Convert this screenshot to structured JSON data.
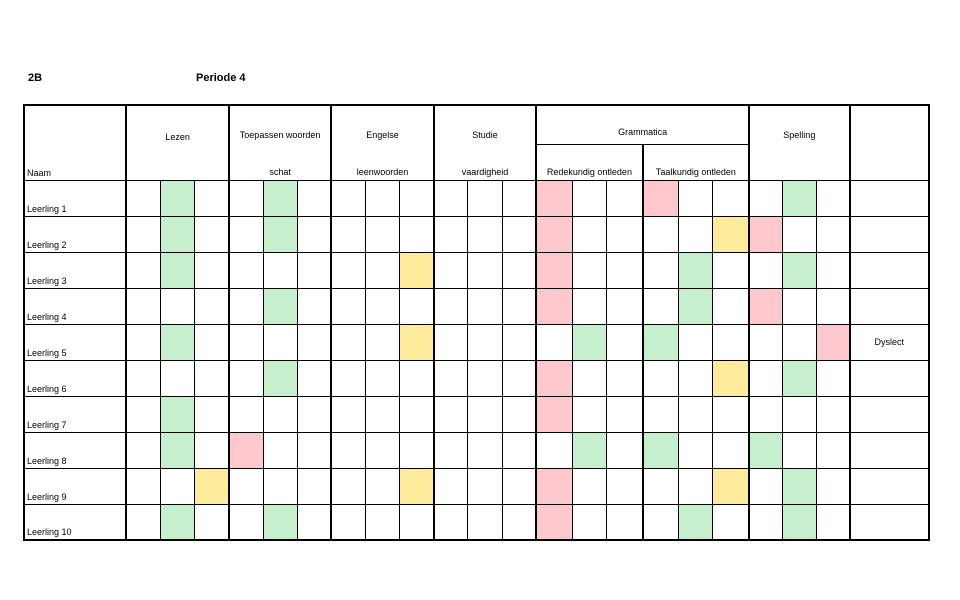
{
  "class_label": "2B",
  "period_label": "Periode 4",
  "headers": {
    "name": "Naam",
    "lezen": "Lezen",
    "toepassen_top": "Toepassen woorden",
    "toepassen_bottom": "schat",
    "engelse_top": "Engelse",
    "engelse_bottom": "leenwoorden",
    "studie_top": "Studie",
    "studie_bottom": "vaardigheid",
    "grammatica": "Grammatica",
    "redekundig": "Redekundig ontleden",
    "taalkundig": "Taalkundig ontleden",
    "spelling": "Spelling"
  },
  "colors": {
    "green": "#c6efce",
    "red": "#ffc7ce",
    "yellow": "#ffeb9c"
  },
  "rows": [
    {
      "name": "Leerling 1",
      "note": "",
      "cells": [
        "",
        "g",
        "",
        "",
        "g",
        "",
        "",
        "",
        "",
        "",
        "",
        "",
        "r",
        "",
        "",
        "r",
        "",
        "",
        "",
        "g",
        ""
      ]
    },
    {
      "name": "Leerling 2",
      "note": "",
      "cells": [
        "",
        "g",
        "",
        "",
        "g",
        "",
        "",
        "",
        "",
        "",
        "",
        "",
        "r",
        "",
        "",
        "",
        "",
        "y",
        "r",
        "",
        ""
      ]
    },
    {
      "name": "Leerling 3",
      "note": "",
      "cells": [
        "",
        "g",
        "",
        "",
        "",
        "",
        "",
        "",
        "y",
        "",
        "",
        "",
        "r",
        "",
        "",
        "",
        "g",
        "",
        "",
        "g",
        ""
      ]
    },
    {
      "name": "Leerling 4",
      "note": "",
      "cells": [
        "",
        "",
        "",
        "",
        "g",
        "",
        "",
        "",
        "",
        "",
        "",
        "",
        "r",
        "",
        "",
        "",
        "g",
        "",
        "r",
        "",
        ""
      ]
    },
    {
      "name": "Leerling 5",
      "note": "Dyslect",
      "cells": [
        "",
        "g",
        "",
        "",
        "",
        "",
        "",
        "",
        "y",
        "",
        "",
        "",
        "",
        "g",
        "",
        "g",
        "",
        "",
        "",
        "",
        "r"
      ]
    },
    {
      "name": "Leerling 6",
      "note": "",
      "cells": [
        "",
        "",
        "",
        "",
        "g",
        "",
        "",
        "",
        "",
        "",
        "",
        "",
        "r",
        "",
        "",
        "",
        "",
        "y",
        "",
        "g",
        ""
      ]
    },
    {
      "name": "Leerling 7",
      "note": "",
      "cells": [
        "",
        "g",
        "",
        "",
        "",
        "",
        "",
        "",
        "",
        "",
        "",
        "",
        "r",
        "",
        "",
        "",
        "",
        "",
        "",
        "",
        ""
      ]
    },
    {
      "name": "Leerling 8",
      "note": "",
      "cells": [
        "",
        "g",
        "",
        "r",
        "",
        "",
        "",
        "",
        "",
        "",
        "",
        "",
        "",
        "g",
        "",
        "g",
        "",
        "",
        "g",
        "",
        ""
      ]
    },
    {
      "name": "Leerling 9",
      "note": "",
      "cells": [
        "",
        "",
        "y",
        "",
        "",
        "",
        "",
        "",
        "y",
        "",
        "",
        "",
        "r",
        "",
        "",
        "",
        "",
        "y",
        "",
        "g",
        ""
      ]
    },
    {
      "name": "Leerling 10",
      "note": "",
      "cells": [
        "",
        "g",
        "",
        "",
        "g",
        "",
        "",
        "",
        "",
        "",
        "",
        "",
        "r",
        "",
        "",
        "",
        "g",
        "",
        "",
        "g",
        ""
      ]
    }
  ]
}
